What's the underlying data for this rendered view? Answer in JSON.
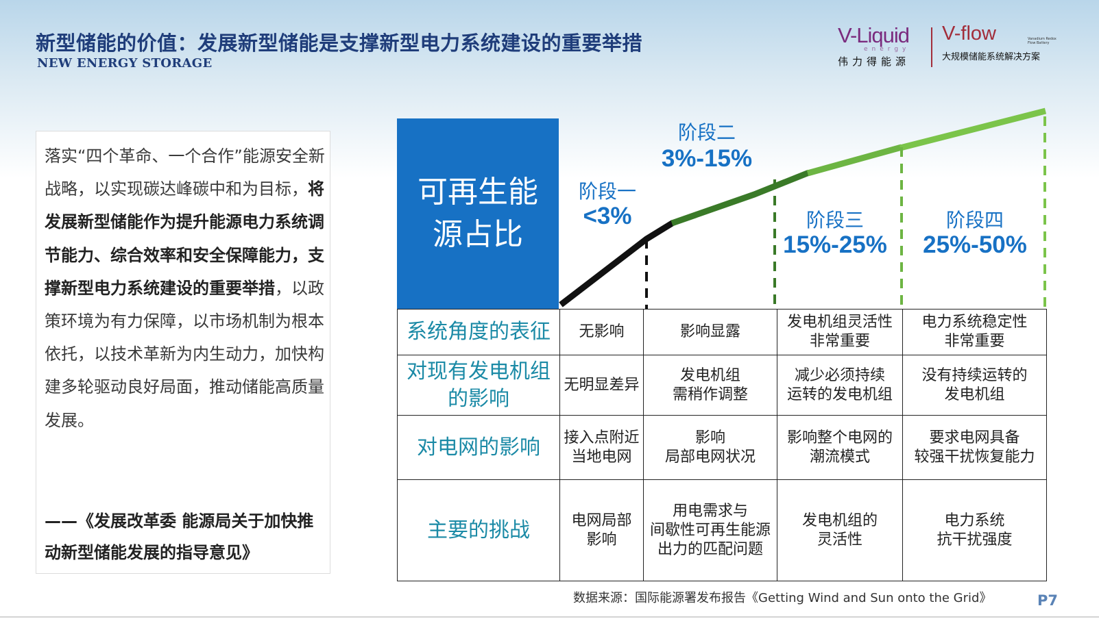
{
  "header": {
    "title": "新型储能的价值：发展新型储能是支撑新型电力系统建设的重要举措",
    "subtitle": "NEW ENERGY STORAGE"
  },
  "logos": {
    "vliquid": {
      "wordmark": "V-Liquid",
      "sub": "energy",
      "cn": "伟力得能源"
    },
    "vflow": {
      "wordmark": "V-flow",
      "small": "Vanadium Redox Flow Battery",
      "cn": "大规模储能系统解决方案"
    },
    "accent_color": "#a22d3a"
  },
  "quote": {
    "p1": "落实“四个革命、一个合作”能源安全新战略，以实现碳达峰碳中和为目标，",
    "p1_bold": "将发展新型储能作为提升能源电力系统调节能力、综合效率和安全保障能力，支撑新型电力系统建设的重要举措",
    "p2": "，以政策环境为有力保障，以市场机制为根本依托，以技术革新为内生动力，加快构建多轮驱动良好局面，推动储能高质量发展。",
    "source": "——《发展改革委 能源局关于加快推动新型储能发展的指导意见》"
  },
  "diagram": {
    "blue_box_label": "可再生能源占比",
    "stages": [
      {
        "name": "阶段一",
        "range": "<3%",
        "color": "#111111"
      },
      {
        "name": "阶段二",
        "range": "3%-15%",
        "color": "#3a7a28"
      },
      {
        "name": "阶段三",
        "range": "15%-25%",
        "color": "#6db543"
      },
      {
        "name": "阶段四",
        "range": "25%-50%",
        "color": "#7bc44a"
      }
    ]
  },
  "table": {
    "rows": [
      {
        "head": "系统角度的表征",
        "cells": [
          "无影响",
          "影响显露",
          "发电机组灵活性\n非常重要",
          "电力系统稳定性\n非常重要"
        ]
      },
      {
        "head": "对现有发电机组\n的影响",
        "cells": [
          "无明显差异",
          "发电机组\n需稍作调整",
          "减少必须持续\n运转的发电机组",
          "没有持续运转的\n发电机组"
        ]
      },
      {
        "head": "对电网的影响",
        "cells": [
          "接入点附近\n当地电网",
          "影响\n局部电网状况",
          "影响整个电网的\n潮流模式",
          "要求电网具备\n较强干扰恢复能力"
        ]
      },
      {
        "head": "主要的挑战",
        "cells": [
          "电网局部\n影响",
          "用电需求与\n间歇性可再生能源\n出力的匹配问题",
          "发电机组的\n灵活性",
          "电力系统\n抗干扰强度"
        ]
      }
    ]
  },
  "footer": {
    "source_note": "数据来源：国际能源署发布报告《Getting Wind and Sun onto the Grid》",
    "page": "P7"
  }
}
